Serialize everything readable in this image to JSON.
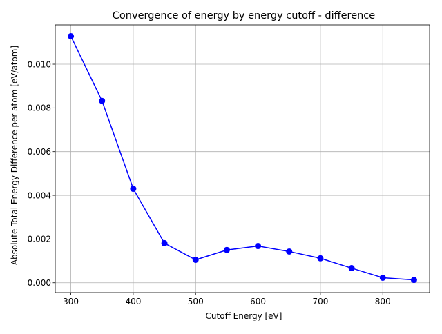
{
  "chart_data": {
    "type": "line",
    "title": "Convergence of energy by energy cutoff - difference",
    "xlabel": "Cutoff Energy [eV]",
    "ylabel": "Absolute Total Energy Difference per atom [eV/atom]",
    "xlim": [
      275,
      875
    ],
    "ylim": [
      -0.00045,
      0.0118
    ],
    "xticks": [
      300,
      400,
      500,
      600,
      700,
      800
    ],
    "yticks": [
      0.0,
      0.002,
      0.004,
      0.006,
      0.008,
      0.01
    ],
    "ytick_labels": [
      "0.000",
      "0.002",
      "0.004",
      "0.006",
      "0.008",
      "0.010"
    ],
    "grid": true,
    "series": [
      {
        "color": "#0000ff",
        "marker": "circle",
        "x": [
          300,
          350,
          400,
          450,
          500,
          550,
          600,
          650,
          700,
          750,
          800,
          850
        ],
        "y": [
          0.01128,
          0.00832,
          0.0043,
          0.00181,
          0.00105,
          0.0015,
          0.00168,
          0.00143,
          0.00112,
          0.00067,
          0.00023,
          0.00013
        ]
      }
    ]
  }
}
